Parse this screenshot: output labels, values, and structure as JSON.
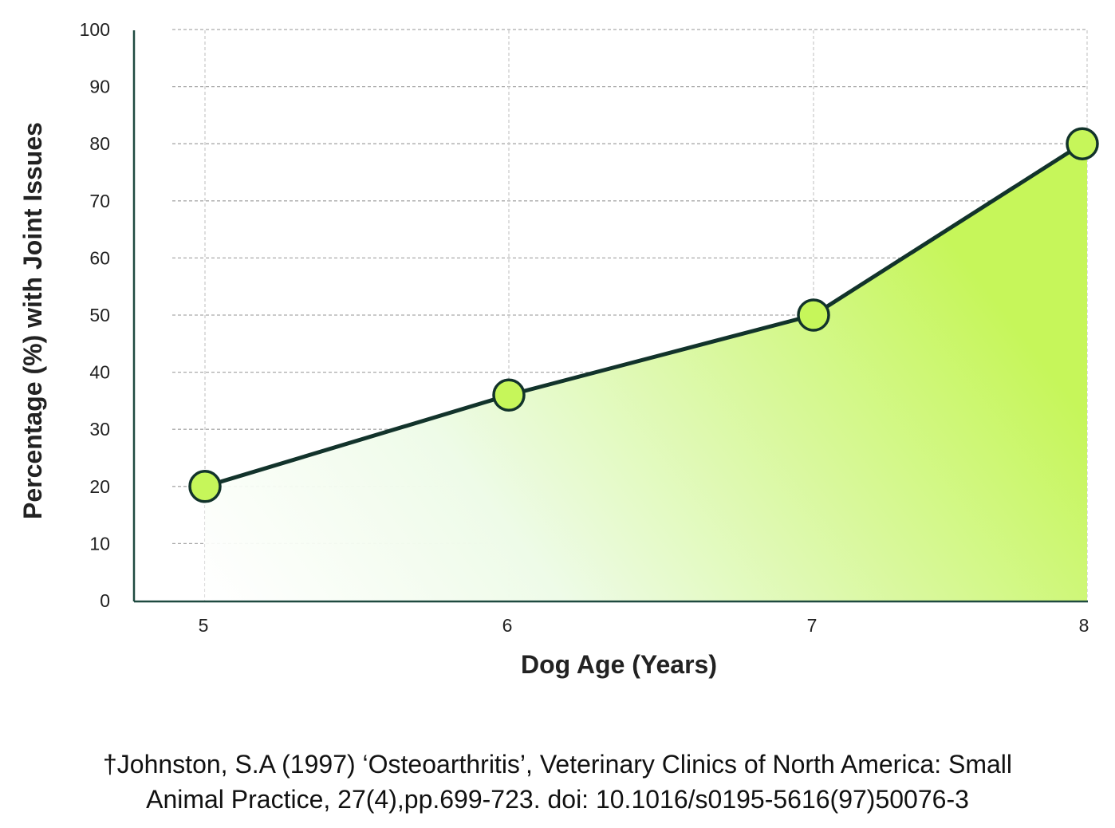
{
  "chart_data": {
    "type": "area",
    "categories": [
      "5",
      "6",
      "7",
      "8"
    ],
    "x": [
      5,
      6,
      7,
      8
    ],
    "values": [
      20,
      36,
      50,
      80
    ],
    "xlabel": "Dog Age (Years)",
    "ylabel": "Percentage (%) with Joint Issues",
    "ylim": [
      0,
      100
    ],
    "yticks": [
      0,
      10,
      20,
      30,
      40,
      50,
      60,
      70,
      80,
      90,
      100
    ],
    "grid": true,
    "colors": {
      "line": "#12332b",
      "marker": "#c6f65a",
      "fill": "#c6f65a"
    }
  },
  "footnote": {
    "line1": "†Johnston, S.A (1997) ‘Osteoarthritis’, Veterinary Clinics of North America: Small",
    "line2": "Animal Practice, 27(4),pp.699-723. doi: 10.1016/s0195-5616(97)50076-3"
  }
}
